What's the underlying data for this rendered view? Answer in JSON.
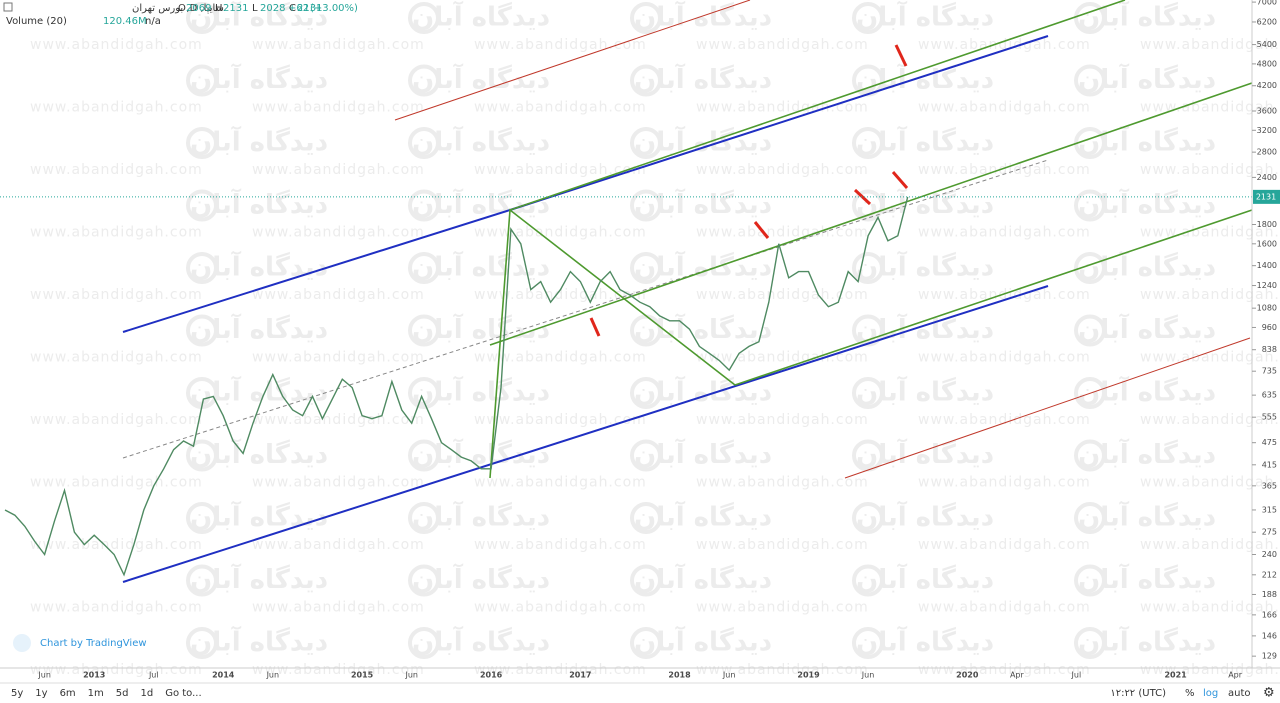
{
  "chart_data": {
    "type": "line",
    "symbol": "سایپا, D, بورس تهران",
    "ohlc": [
      {
        "label": "O",
        "value": 2069
      },
      {
        "label": "H",
        "value": 2131
      },
      {
        "label": "L",
        "value": 2028
      },
      {
        "label": "C",
        "value": 2131
      }
    ],
    "change": {
      "value": 62,
      "label": "+62"
    },
    "change_percent": {
      "value": 3,
      "label": "(+3.00%)"
    },
    "volume_title": "Volume (20)",
    "volume_value": {
      "value": 120460000,
      "label": "120.46M"
    },
    "volume_extra": "n/a",
    "credit": "Chart by TradingView",
    "watermark": "www.abandidgah.com",
    "watermark_logo": "دیدگاه آبان",
    "toolbar": [
      "5y",
      "1y",
      "6m",
      "1m",
      "5d",
      "1d",
      "Go to..."
    ],
    "time_label": "۱۲:۲۲ (UTC)",
    "scale_buttons": [
      "%",
      "log",
      "auto"
    ],
    "log_scale": true,
    "color": "#4f8a62",
    "categories": [
      null,
      null,
      null,
      null,
      "Jun",
      null,
      null,
      null,
      null,
      "2013",
      null,
      null,
      null,
      null,
      null,
      "Jul",
      null,
      null,
      null,
      null,
      null,
      null,
      "2014",
      null,
      null,
      null,
      null,
      "Jun",
      null,
      null,
      null,
      null,
      null,
      null,
      null,
      null,
      "2015",
      null,
      null,
      null,
      null,
      "Jun",
      null,
      null,
      null,
      null,
      null,
      null,
      null,
      "2016",
      null,
      null,
      null,
      null,
      null,
      null,
      null,
      null,
      "2017",
      null,
      null,
      null,
      null,
      null,
      null,
      null,
      null,
      null,
      "2018",
      null,
      null,
      null,
      null,
      "Jun",
      null,
      null,
      null,
      null,
      null,
      null,
      null,
      "2019",
      null,
      null,
      null,
      null,
      null,
      "Jun",
      null,
      null,
      null,
      null,
      null,
      null,
      null,
      null,
      null,
      "2020",
      null,
      null,
      null,
      null,
      "Apr",
      null,
      null,
      null,
      null,
      null,
      "Jul",
      null,
      null,
      null,
      null,
      null,
      null,
      null,
      null,
      null,
      "2021",
      null,
      null,
      null,
      null,
      null,
      "Apr",
      null
    ],
    "values": [
      315,
      305,
      285,
      260,
      240,
      295,
      355,
      275,
      255,
      270,
      255,
      240,
      212,
      255,
      315,
      365,
      405,
      455,
      480,
      465,
      620,
      630,
      560,
      480,
      445,
      535,
      630,
      720,
      630,
      580,
      560,
      630,
      550,
      620,
      700,
      665,
      560,
      550,
      560,
      690,
      580,
      535,
      630,
      550,
      475,
      455,
      435,
      425,
      405,
      405,
      665,
      1750,
      1600,
      1210,
      1270,
      1120,
      1210,
      1350,
      1270,
      1120,
      1270,
      1350,
      1210,
      1170,
      1120,
      1090,
      1030,
      1000,
      1000,
      950,
      855,
      820,
      785,
      740,
      820,
      855,
      880,
      1120,
      1600,
      1300,
      1350,
      1350,
      1170,
      1090,
      1120,
      1350,
      1270,
      1680,
      1880,
      1630,
      1680,
      2131,
      null,
      null,
      null,
      null,
      null,
      null,
      null,
      null,
      null,
      null,
      null,
      null,
      null,
      null,
      null,
      null,
      null,
      null,
      null,
      null,
      null,
      null,
      null,
      null,
      null,
      null,
      null,
      null,
      null,
      null,
      null,
      null,
      null,
      null
    ],
    "ylim": [
      120,
      7090
    ],
    "yticks": [
      7000,
      6200,
      5400,
      4800,
      4200,
      3600,
      3200,
      2800,
      2400,
      1800,
      1600,
      1400,
      1240,
      1080,
      960,
      838,
      735,
      635,
      555,
      475,
      415,
      365,
      315,
      275,
      240,
      212,
      188,
      166,
      146,
      129
    ]
  }
}
